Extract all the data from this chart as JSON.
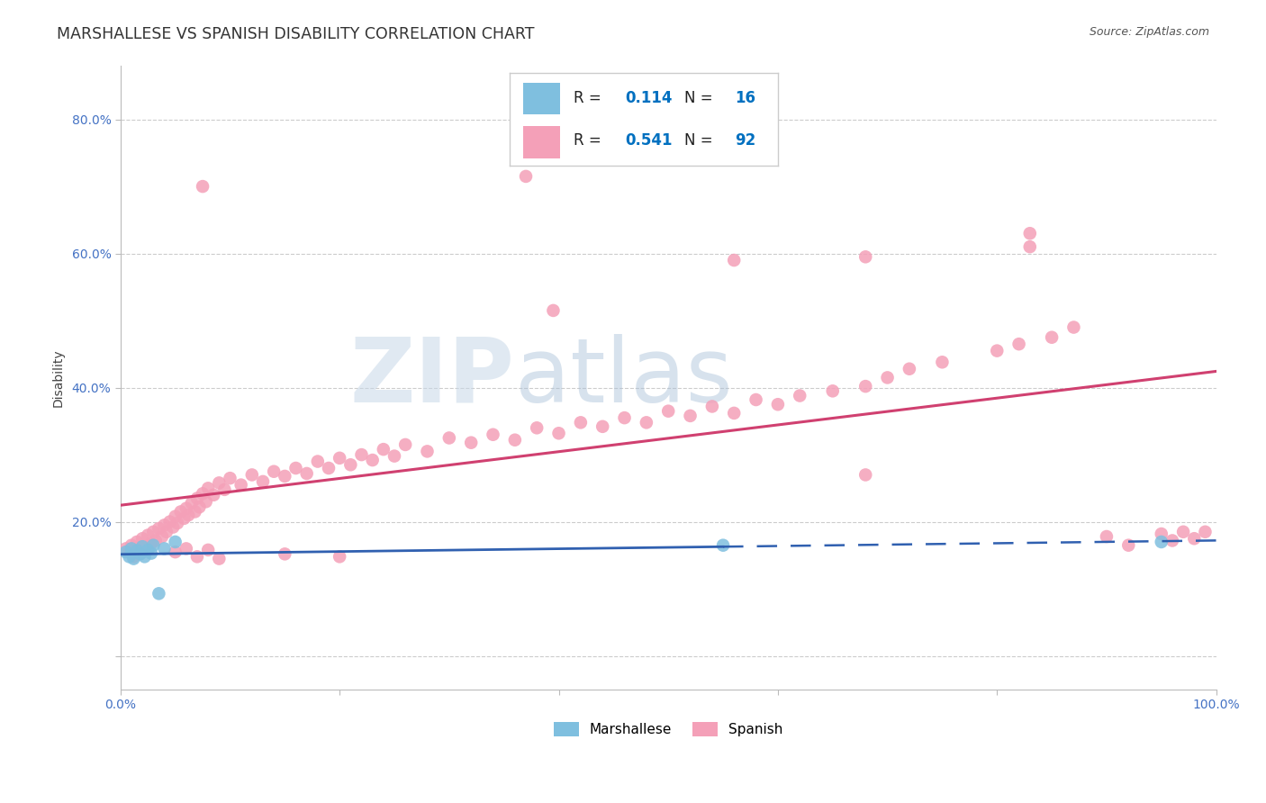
{
  "title": "MARSHALLESE VS SPANISH DISABILITY CORRELATION CHART",
  "source": "Source: ZipAtlas.com",
  "ylabel": "Disability",
  "xlim": [
    0.0,
    1.0
  ],
  "ylim": [
    -0.05,
    0.88
  ],
  "marshallese_R": 0.114,
  "marshallese_N": 16,
  "spanish_R": 0.541,
  "spanish_N": 92,
  "marshallese_color": "#7fbfdf",
  "spanish_color": "#f4a0b8",
  "marshallese_line_color": "#3060b0",
  "spanish_line_color": "#d04070",
  "background_color": "#ffffff",
  "grid_color": "#cccccc",
  "axis_color": "#4472c4",
  "title_color": "#333333",
  "legend_val_color": "#0070c0",
  "marshallese_x": [
    0.005,
    0.008,
    0.01,
    0.012,
    0.015,
    0.018,
    0.02,
    0.022,
    0.025,
    0.028,
    0.03,
    0.035,
    0.04,
    0.05,
    0.55,
    0.95
  ],
  "marshallese_low_y": [
    0.155,
    0.148,
    0.16,
    0.145,
    0.157,
    0.152,
    0.163,
    0.148,
    0.158,
    0.153,
    0.165,
    0.093,
    0.16,
    0.17,
    0.165,
    0.17
  ],
  "spanish_x": [
    0.005,
    0.008,
    0.01,
    0.012,
    0.015,
    0.018,
    0.02,
    0.022,
    0.025,
    0.028,
    0.03,
    0.032,
    0.035,
    0.038,
    0.04,
    0.042,
    0.045,
    0.048,
    0.05,
    0.052,
    0.055,
    0.058,
    0.06,
    0.062,
    0.065,
    0.068,
    0.07,
    0.072,
    0.075,
    0.078,
    0.08,
    0.085,
    0.09,
    0.095,
    0.1,
    0.11,
    0.12,
    0.13,
    0.14,
    0.15,
    0.16,
    0.17,
    0.18,
    0.19,
    0.2,
    0.21,
    0.22,
    0.23,
    0.24,
    0.25,
    0.26,
    0.28,
    0.3,
    0.32,
    0.34,
    0.36,
    0.38,
    0.4,
    0.42,
    0.44,
    0.46,
    0.48,
    0.5,
    0.52,
    0.54,
    0.56,
    0.58,
    0.6,
    0.62,
    0.65,
    0.68,
    0.7,
    0.72,
    0.75,
    0.8,
    0.82,
    0.85,
    0.87,
    0.9,
    0.92,
    0.95,
    0.96,
    0.97,
    0.98,
    0.99,
    0.05,
    0.06,
    0.07,
    0.08,
    0.09,
    0.15,
    0.2
  ],
  "spanish_y": [
    0.16,
    0.155,
    0.165,
    0.148,
    0.17,
    0.158,
    0.175,
    0.162,
    0.18,
    0.168,
    0.185,
    0.172,
    0.19,
    0.178,
    0.195,
    0.185,
    0.2,
    0.192,
    0.208,
    0.198,
    0.215,
    0.205,
    0.22,
    0.21,
    0.228,
    0.215,
    0.235,
    0.222,
    0.242,
    0.23,
    0.25,
    0.24,
    0.258,
    0.248,
    0.265,
    0.255,
    0.27,
    0.26,
    0.275,
    0.268,
    0.28,
    0.272,
    0.29,
    0.28,
    0.295,
    0.285,
    0.3,
    0.292,
    0.308,
    0.298,
    0.315,
    0.305,
    0.325,
    0.318,
    0.33,
    0.322,
    0.34,
    0.332,
    0.348,
    0.342,
    0.355,
    0.348,
    0.365,
    0.358,
    0.372,
    0.362,
    0.382,
    0.375,
    0.388,
    0.395,
    0.402,
    0.415,
    0.428,
    0.438,
    0.455,
    0.465,
    0.475,
    0.49,
    0.178,
    0.165,
    0.182,
    0.172,
    0.185,
    0.175,
    0.185,
    0.155,
    0.16,
    0.148,
    0.158,
    0.145,
    0.152,
    0.148
  ],
  "spanish_outliers_x": [
    0.37,
    0.075,
    0.83,
    0.83,
    0.56,
    0.68,
    0.395,
    0.68
  ],
  "spanish_outliers_y": [
    0.715,
    0.7,
    0.63,
    0.61,
    0.59,
    0.595,
    0.515,
    0.27
  ]
}
